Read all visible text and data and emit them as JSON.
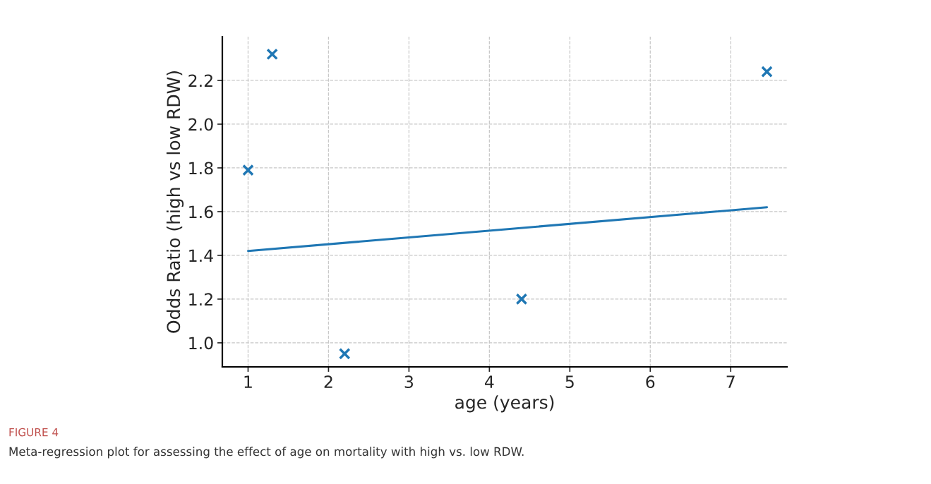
{
  "chart_data": {
    "type": "scatter",
    "xlabel": "age (years)",
    "ylabel": "Odds Ratio (high vs low RDW)",
    "annotations": [
      "FIGURE 4",
      "Meta-regression plot for assessing the effect of age on mortality with high vs. low RDW."
    ],
    "series": [
      {
        "color": "#1f77b4",
        "marker": "cross",
        "x": [
          1.0,
          1.3,
          2.2,
          4.4,
          7.45
        ],
        "values": [
          1.79,
          2.32,
          0.95,
          1.2,
          2.24
        ]
      },
      {
        "type": "line",
        "color": "#1f77b4",
        "line_style": "solid",
        "x": [
          1.0,
          7.45
        ],
        "values": [
          1.42,
          1.62
        ]
      }
    ],
    "xlim": [
      0.68,
      7.7
    ],
    "ylim": [
      0.89,
      2.4
    ],
    "xticks": [
      1,
      2,
      3,
      4,
      5,
      6,
      7
    ],
    "yticks": [
      {
        "value": 1,
        "label": "1.0"
      },
      1.2,
      1.4,
      1.6,
      1.8,
      {
        "value": 2,
        "label": "2.0"
      },
      2.2
    ],
    "grid": true
  }
}
